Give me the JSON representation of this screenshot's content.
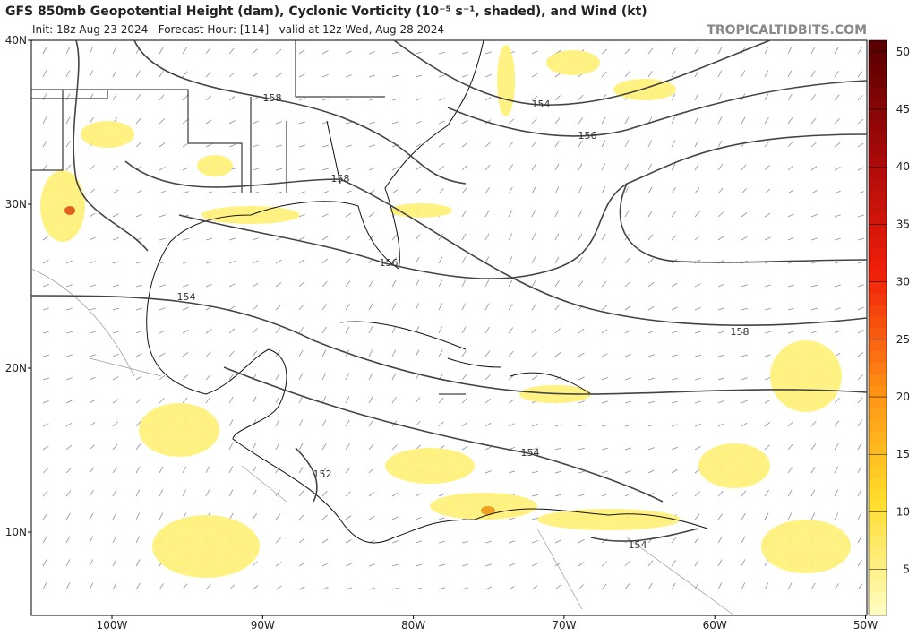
{
  "header": {
    "title": "GFS 850mb Geopotential Height (dam), Cyclonic Vorticity (10⁻⁵ s⁻¹, shaded), and Wind (kt)",
    "subtitle": "Init: 18z Aug 23 2024   Forecast Hour: [114]   valid at 12z Wed, Aug 28 2024",
    "site": "TROPICALTIDBITS.COM"
  },
  "map": {
    "lat_labels": [
      "40N",
      "30N",
      "20N",
      "10N"
    ],
    "lon_labels": [
      "100W",
      "90W",
      "80W",
      "70W",
      "60W",
      "50W"
    ],
    "contour_labels": [
      "158",
      "154",
      "156",
      "158",
      "156",
      "154",
      "158",
      "154",
      "152",
      "154"
    ]
  },
  "colorbar": {
    "range": [
      1,
      51
    ],
    "ticks": [
      5,
      10,
      15,
      20,
      25,
      30,
      35,
      40,
      45,
      50
    ]
  }
}
